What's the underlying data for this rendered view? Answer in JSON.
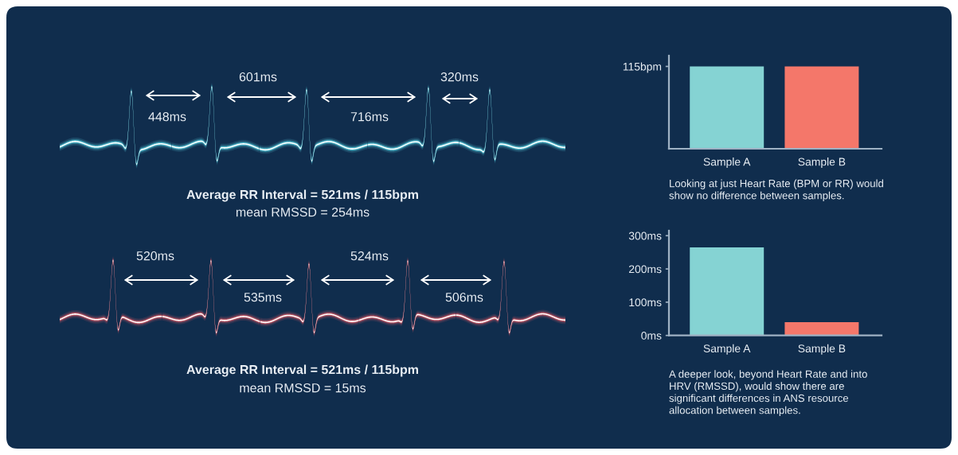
{
  "chart_data": [
    {
      "type": "other",
      "annotations": [
        "448ms",
        "601ms",
        "716ms",
        "320ms",
        "Average RR Interval = 521ms / 115bpm",
        "mean RMSSD = 254ms",
        "520ms",
        "535ms",
        "524ms",
        "506ms",
        "Average RR Interval = 521ms / 115bpm",
        "mean RMSSD = 15ms"
      ]
    },
    {
      "type": "bar",
      "categories": [
        "Sample A",
        "Sample B"
      ],
      "values": [
        115,
        115
      ],
      "colors": [
        "#85d3d3",
        "#f4776a"
      ],
      "ylim": [
        0,
        130
      ],
      "yticks": [
        {
          "value": 115,
          "label": "115bpm"
        }
      ],
      "grid": false,
      "annotations": [
        "Looking at just Heart Rate (BPM or RR) would\nshow no difference between samples."
      ]
    },
    {
      "type": "bar",
      "categories": [
        "Sample A",
        "Sample B"
      ],
      "values": [
        265,
        40
      ],
      "colors": [
        "#85d3d3",
        "#f4776a"
      ],
      "ylim": [
        0,
        315
      ],
      "yticks": [
        {
          "value": 0,
          "label": "0ms"
        },
        {
          "value": 100,
          "label": "100ms"
        },
        {
          "value": 200,
          "label": "200ms"
        },
        {
          "value": 300,
          "label": "300ms"
        }
      ],
      "grid": false,
      "annotations": [
        "A deeper look, beyond Heart Rate and into\nHRV (RMSSD), would show there are\nsignificant differences in ANS resource\nallocation between samples."
      ]
    }
  ]
}
